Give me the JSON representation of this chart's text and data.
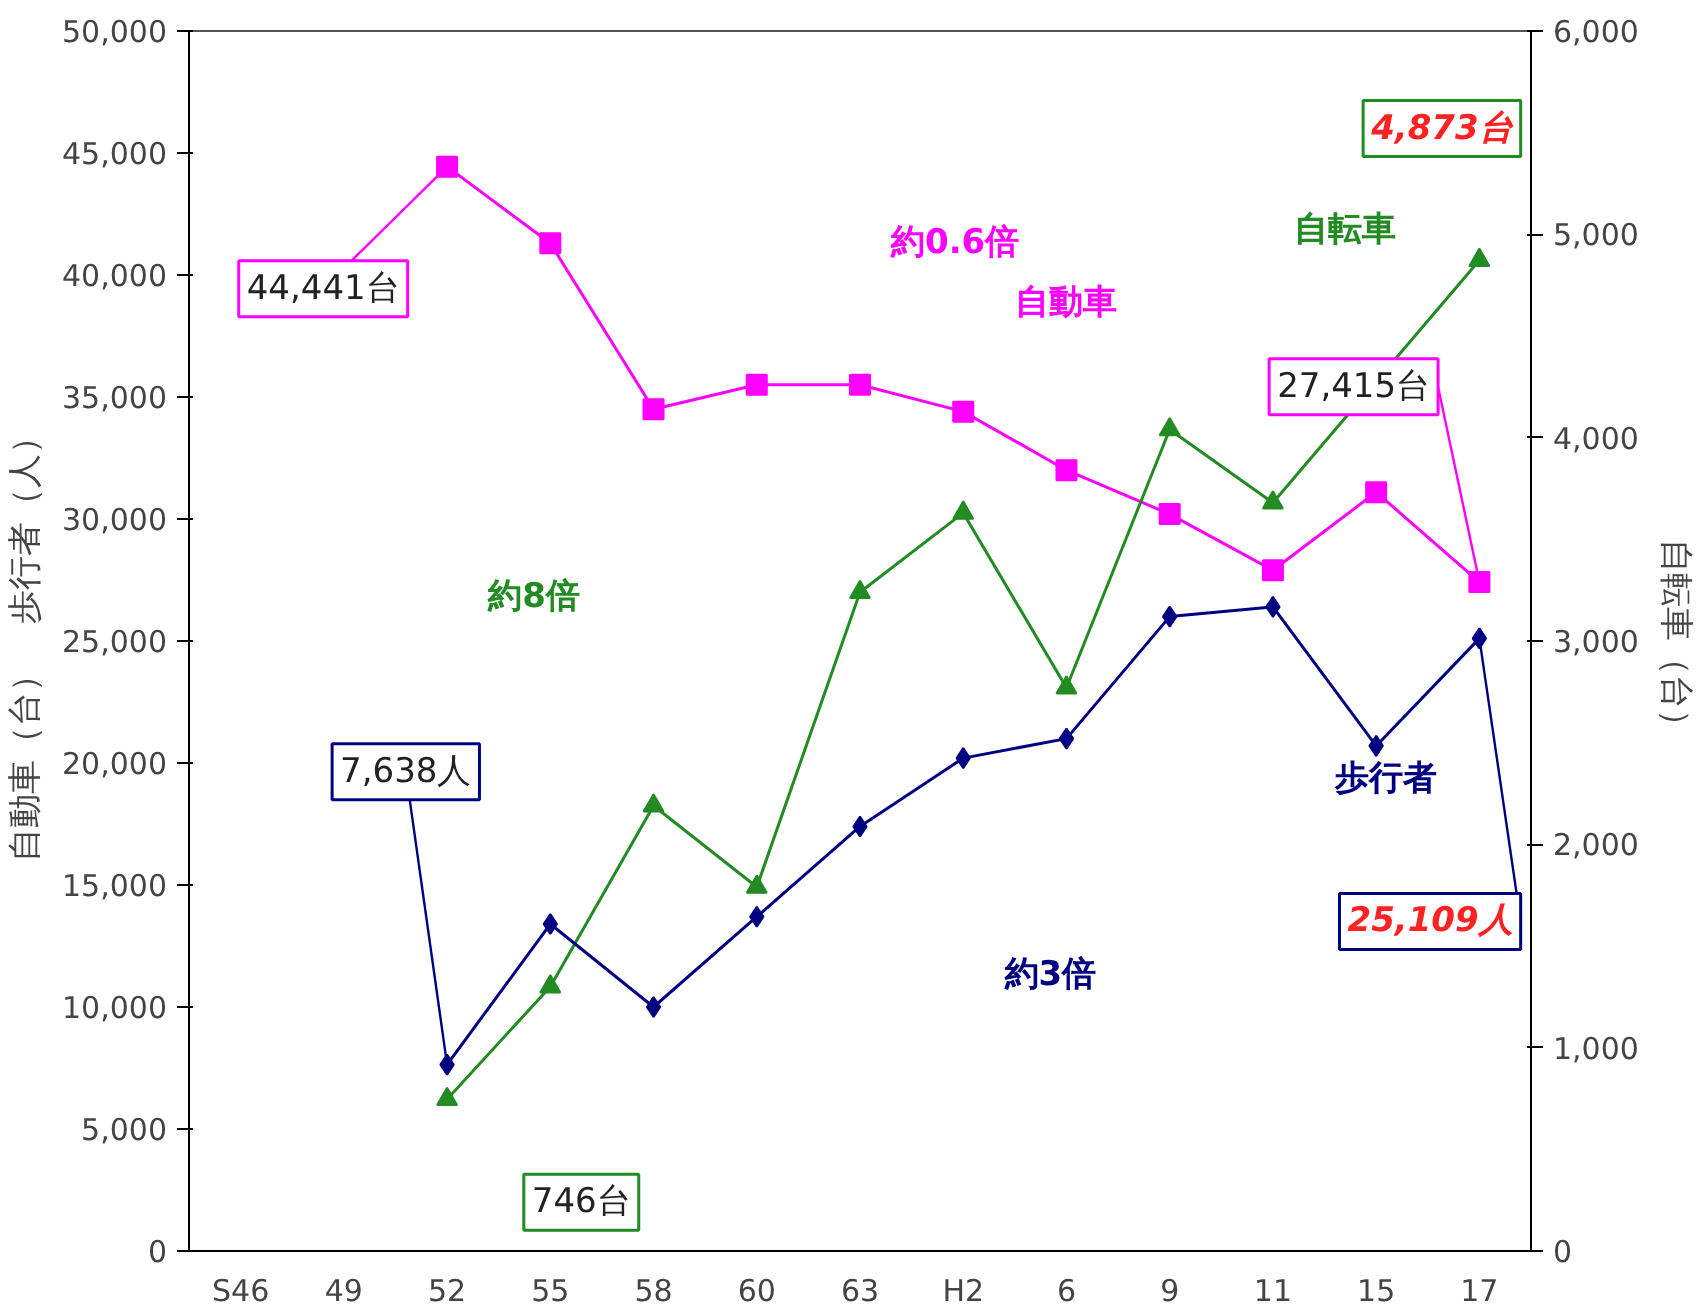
{
  "chart_data": {
    "type": "line",
    "ylabel": "自動車（台）　歩行者（人）",
    "y2label": "自転車（台）",
    "categories": [
      "S46",
      "49",
      "52",
      "55",
      "58",
      "60",
      "63",
      "H2",
      "6",
      "9",
      "11",
      "15",
      "17"
    ],
    "series": [
      {
        "name": "自動車",
        "color": "#ff00ff",
        "marker": "square",
        "values": [
          null,
          null,
          44441,
          41300,
          34500,
          35500,
          35500,
          34400,
          32000,
          30200,
          27900,
          31100,
          27415
        ]
      },
      {
        "name": "自転車",
        "color": "#228b22",
        "marker": "triangle",
        "axis": "y2",
        "x": [
          "52",
          "55",
          "58",
          "60",
          "63",
          "H2",
          "6",
          "9",
          "11",
          "17"
        ],
        "values": [
          746,
          1300,
          2190,
          1790,
          3240,
          3630,
          2770,
          4040,
          3680,
          4873
        ]
      },
      {
        "name": "歩行者",
        "color": "#000080",
        "marker": "diamond",
        "values": [
          null,
          null,
          7638,
          13400,
          10000,
          13700,
          17400,
          20200,
          21000,
          26000,
          26400,
          20700,
          25109
        ]
      }
    ],
    "ylim": [
      0,
      50000
    ],
    "yticks": [
      {
        "value": 0,
        "label": "0"
      },
      {
        "value": 5000,
        "label": "5,000"
      },
      {
        "value": 10000,
        "label": "10,000"
      },
      {
        "value": 15000,
        "label": "15,000"
      },
      {
        "value": 20000,
        "label": "20,000"
      },
      {
        "value": 25000,
        "label": "25,000"
      },
      {
        "value": 30000,
        "label": "30,000"
      },
      {
        "value": 35000,
        "label": "35,000"
      },
      {
        "value": 40000,
        "label": "40,000"
      },
      {
        "value": 45000,
        "label": "45,000"
      },
      {
        "value": 50000,
        "label": "50,000"
      }
    ],
    "y2lim": [
      0,
      6000
    ],
    "y2ticks": [
      {
        "value": 0,
        "label": "0"
      },
      {
        "value": 1000,
        "label": "1,000"
      },
      {
        "value": 2000,
        "label": "2,000"
      },
      {
        "value": 3000,
        "label": "3,000"
      },
      {
        "value": 4000,
        "label": "4,000"
      },
      {
        "value": 5000,
        "label": "5,000"
      },
      {
        "value": 6000,
        "label": "6,000"
      }
    ],
    "annotations": [
      {
        "text": "44,441台",
        "x": "52",
        "y": 44441
      },
      {
        "text": "27,415台",
        "x": "17",
        "y": 27415
      },
      {
        "text": "7,638人",
        "x": "52",
        "y": 7638
      },
      {
        "text": "25,109人",
        "x": "17",
        "y": 25109
      },
      "約0.6倍",
      "約8倍",
      "約3倍",
      "4,873台",
      "746台"
    ],
    "grid": false,
    "legend": false
  }
}
